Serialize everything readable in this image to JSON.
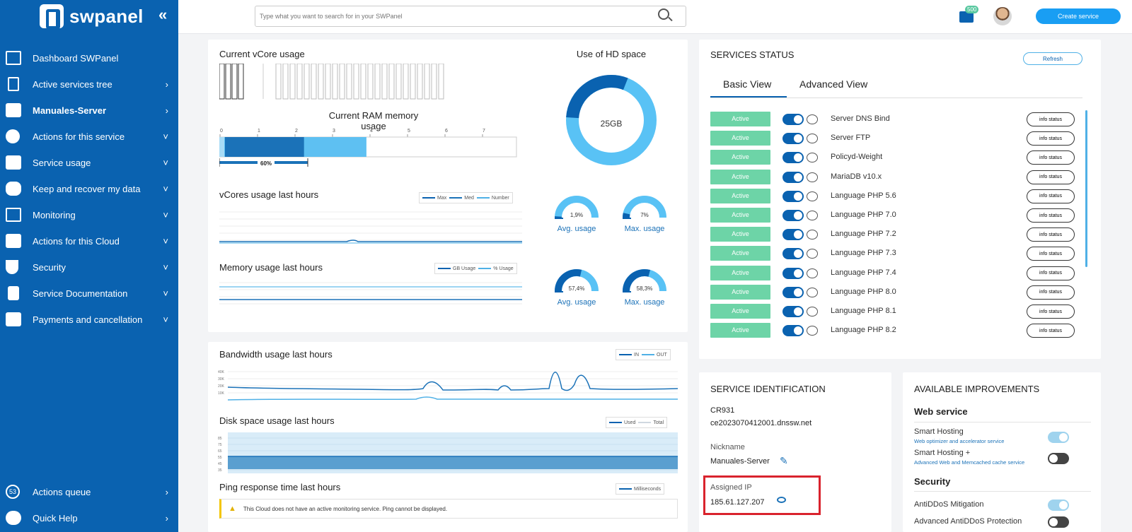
{
  "app": {
    "name": "swpanel"
  },
  "sidebar": {
    "items": [
      {
        "label": "Dashboard SWPanel",
        "chevron": ""
      },
      {
        "label": "Active services tree",
        "chevron": "›"
      },
      {
        "label": "Manuales-Server",
        "chevron": "›"
      },
      {
        "label": "Actions for this service",
        "chevron": "˅"
      },
      {
        "label": "Service usage",
        "chevron": "˅"
      },
      {
        "label": "Keep and recover my data",
        "chevron": "˅"
      },
      {
        "label": "Monitoring",
        "chevron": "˅"
      },
      {
        "label": "Actions for this Cloud",
        "chevron": "˅"
      },
      {
        "label": "Security",
        "chevron": "˅"
      },
      {
        "label": "Service Documentation",
        "chevron": "˅"
      },
      {
        "label": "Payments and cancellation",
        "chevron": "˅"
      }
    ],
    "footer": [
      {
        "label": "Actions queue",
        "badge": "53",
        "chevron": "›"
      },
      {
        "label": "Quick Help",
        "chevron": "›"
      }
    ]
  },
  "topbar": {
    "search_placeholder": "Type what you want to search for in your SWPanel",
    "credits_badge": "500",
    "create_label": "Create service"
  },
  "usage": {
    "vcore_title": "Current vCore usage",
    "vcore_used": 4,
    "vcore_total": 28,
    "ram_title": "Current RAM memory usage",
    "ram_ticks": [
      "0",
      "1",
      "2",
      "3",
      "4",
      "5",
      "6",
      "7"
    ],
    "ram_percent": "60%",
    "ram_used_gb": 2.3,
    "ram_total_gb": 4,
    "ram_scale_max": 8,
    "hd_title": "Use of HD space",
    "hd_value": "25GB",
    "hd_used_fraction": 0.3,
    "vcores_chart_title": "vCores usage last hours",
    "vcores_legend": [
      "Max",
      "Med",
      "Number"
    ],
    "gauge_vcore_avg": {
      "value": "1,9%",
      "label": "Avg. usage",
      "fraction": 0.019
    },
    "gauge_vcore_max": {
      "value": "7%",
      "label": "Max. usage",
      "fraction": 0.07
    },
    "memory_chart_title": "Memory usage last hours",
    "memory_legend": [
      "GB Usage",
      "% Usage"
    ],
    "gauge_mem_avg": {
      "value": "57,4%",
      "label": "Avg. usage",
      "fraction": 0.574
    },
    "gauge_mem_max": {
      "value": "58,3%",
      "label": "Max. usage",
      "fraction": 0.583
    }
  },
  "traffic": {
    "bandwidth_title": "Bandwidth usage last hours",
    "bandwidth_legend": [
      "IN",
      "OUT"
    ],
    "bandwidth_yticks": [
      "40K",
      "30K",
      "20K",
      "10K"
    ],
    "disk_title": "Disk space usage last hours",
    "disk_legend": [
      "Used",
      "Total"
    ],
    "disk_yticks": [
      "85",
      "75",
      "65",
      "55",
      "45",
      "35"
    ],
    "ping_title": "Ping response time last hours",
    "ping_legend": [
      "Milliseconds"
    ],
    "ping_warning": "This Cloud does not have an active monitoring service. Ping cannot be displayed."
  },
  "services_status": {
    "title": "SERVICES STATUS",
    "refresh_label": "Refresh",
    "tabs": [
      "Basic View",
      "Advanced View"
    ],
    "status_label": "Active",
    "info_label": "info status",
    "services": [
      "Server DNS Bind",
      "Server FTP",
      "Policyd-Weight",
      "MariaDB v10.x",
      "Language PHP 5.6",
      "Language PHP 7.0",
      "Language PHP 7.2",
      "Language PHP 7.3",
      "Language PHP 7.4",
      "Language PHP 8.0",
      "Language PHP 8.1",
      "Language PHP 8.2"
    ]
  },
  "identification": {
    "title": "SERVICE IDENTIFICATION",
    "code": "CR931",
    "hostname": "ce2023070412001.dnssw.net",
    "nickname_label": "Nickname",
    "nickname": "Manuales-Server",
    "ip_label": "Assigned IP",
    "ip": "185.61.127.207",
    "highlight_color": "#d9232d"
  },
  "improvements": {
    "title": "AVAILABLE IMPROVEMENTS",
    "web_head": "Web service",
    "smart_hosting": "Smart Hosting",
    "smart_hosting_sub": "Web optimizer and accelerator service",
    "smart_hosting_plus": "Smart Hosting +",
    "smart_hosting_plus_sub": "Advanced Web and Memcached cache service",
    "security_head": "Security",
    "antiddos": "AntiDDoS Mitigation",
    "antiddos_adv": "Advanced AntiDDoS Protection"
  },
  "colors": {
    "sidebar": "#0a62b0",
    "accent": "#199ef3",
    "active_status": "#6dd4a7",
    "dark_blue": "#0a62b0",
    "light_blue": "#4fb0e6"
  }
}
